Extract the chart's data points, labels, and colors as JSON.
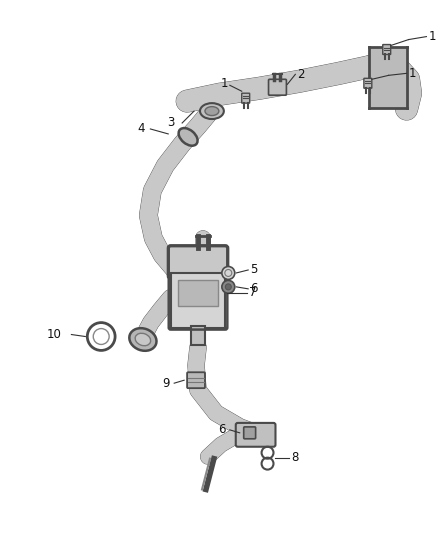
{
  "bg_color": "#ffffff",
  "line_color": "#4a4a4a",
  "gray_fill": "#d0d0d0",
  "light_fill": "#e8e8e8",
  "figsize": [
    4.38,
    5.33
  ],
  "dpi": 100
}
